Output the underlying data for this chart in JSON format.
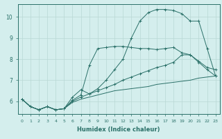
{
  "xlabel": "Humidex (Indice chaleur)",
  "ylabel": "",
  "bg_color": "#d4eeed",
  "grid_color": "#b8d8d4",
  "line_color": "#2a7068",
  "xlim": [
    -0.5,
    23.5
  ],
  "ylim": [
    5.4,
    10.6
  ],
  "yticks": [
    6,
    7,
    8,
    9,
    10
  ],
  "xticks": [
    0,
    1,
    2,
    3,
    4,
    5,
    6,
    7,
    8,
    9,
    10,
    11,
    12,
    13,
    14,
    15,
    16,
    17,
    18,
    19,
    20,
    21,
    22,
    23
  ],
  "lines": [
    {
      "x": [
        0,
        1,
        2,
        3,
        4,
        5,
        6,
        7,
        8,
        9,
        10,
        11,
        12,
        13,
        14,
        15,
        16,
        17,
        18,
        19,
        20,
        21,
        22,
        23
      ],
      "y": [
        6.1,
        5.75,
        5.6,
        5.75,
        5.6,
        5.65,
        6.2,
        6.55,
        6.35,
        6.6,
        7.0,
        7.5,
        8.0,
        9.0,
        9.8,
        10.2,
        10.35,
        10.35,
        10.3,
        10.15,
        9.8,
        9.8,
        8.5,
        7.2
      ],
      "marker": "+"
    },
    {
      "x": [
        0,
        1,
        2,
        3,
        4,
        5,
        6,
        7,
        8,
        9,
        10,
        11,
        12,
        13,
        14,
        15,
        16,
        17,
        18,
        19,
        20,
        21,
        22,
        23
      ],
      "y": [
        6.1,
        5.75,
        5.6,
        5.75,
        5.6,
        5.65,
        6.05,
        6.3,
        7.7,
        8.5,
        8.55,
        8.6,
        8.6,
        8.55,
        8.5,
        8.5,
        8.45,
        8.5,
        8.55,
        8.3,
        8.2,
        7.85,
        7.5,
        7.2
      ],
      "marker": "+"
    },
    {
      "x": [
        0,
        1,
        2,
        3,
        4,
        5,
        6,
        7,
        8,
        9,
        10,
        11,
        12,
        13,
        14,
        15,
        16,
        17,
        18,
        19,
        20,
        21,
        22,
        23
      ],
      "y": [
        6.1,
        5.75,
        5.6,
        5.75,
        5.6,
        5.65,
        6.0,
        6.2,
        6.35,
        6.5,
        6.65,
        6.8,
        7.0,
        7.15,
        7.3,
        7.45,
        7.6,
        7.7,
        7.85,
        8.2,
        8.2,
        7.9,
        7.6,
        7.5
      ],
      "marker": "+"
    },
    {
      "x": [
        0,
        1,
        2,
        3,
        4,
        5,
        6,
        7,
        8,
        9,
        10,
        11,
        12,
        13,
        14,
        15,
        16,
        17,
        18,
        19,
        20,
        21,
        22,
        23
      ],
      "y": [
        6.1,
        5.75,
        5.6,
        5.75,
        5.6,
        5.65,
        5.95,
        6.1,
        6.2,
        6.3,
        6.4,
        6.5,
        6.55,
        6.6,
        6.65,
        6.7,
        6.8,
        6.85,
        6.9,
        6.95,
        7.0,
        7.1,
        7.15,
        7.2
      ],
      "marker": null
    }
  ]
}
